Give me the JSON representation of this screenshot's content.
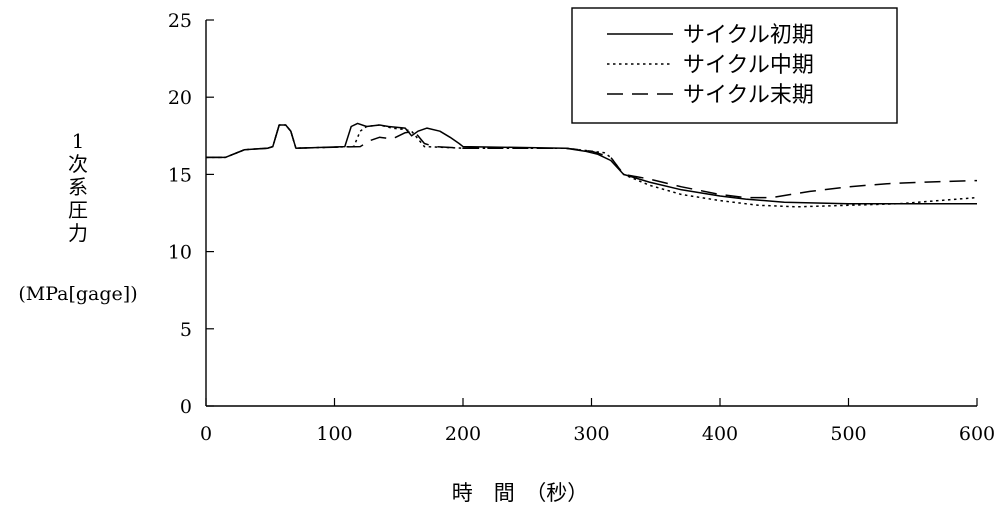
{
  "chart_data": {
    "type": "line",
    "xlabel": "時　間　（秒）",
    "ylabel_lines": [
      "1",
      "次",
      "系",
      "圧",
      "力"
    ],
    "ylabel_unit": "(MPa[gage])",
    "xlim": [
      0,
      600
    ],
    "ylim": [
      0,
      25
    ],
    "xticks": [
      0,
      100,
      200,
      300,
      400,
      500,
      600
    ],
    "yticks": [
      0,
      5,
      10,
      15,
      20,
      25
    ],
    "grid": false,
    "legend_position": "top-right",
    "series": [
      {
        "name": "サイクル初期",
        "style": "solid",
        "points": [
          [
            0,
            16.1
          ],
          [
            15,
            16.1
          ],
          [
            30,
            16.6
          ],
          [
            48,
            16.7
          ],
          [
            52,
            16.8
          ],
          [
            57,
            18.2
          ],
          [
            62,
            18.2
          ],
          [
            66,
            17.8
          ],
          [
            70,
            16.7
          ],
          [
            108,
            16.8
          ],
          [
            113,
            18.1
          ],
          [
            118,
            18.3
          ],
          [
            125,
            18.1
          ],
          [
            135,
            18.2
          ],
          [
            142,
            18.1
          ],
          [
            155,
            18.0
          ],
          [
            160,
            17.5
          ],
          [
            165,
            17.8
          ],
          [
            172,
            18.0
          ],
          [
            182,
            17.8
          ],
          [
            190,
            17.4
          ],
          [
            197,
            17.0
          ],
          [
            200,
            16.8
          ],
          [
            280,
            16.7
          ],
          [
            295,
            16.5
          ],
          [
            305,
            16.3
          ],
          [
            315,
            15.9
          ],
          [
            325,
            15.0
          ],
          [
            345,
            14.5
          ],
          [
            370,
            14.0
          ],
          [
            400,
            13.6
          ],
          [
            420,
            13.4
          ],
          [
            450,
            13.2
          ],
          [
            500,
            13.1
          ],
          [
            550,
            13.1
          ],
          [
            600,
            13.1
          ]
        ]
      },
      {
        "name": "サイクル中期",
        "style": "dotted",
        "points": [
          [
            0,
            16.1
          ],
          [
            15,
            16.1
          ],
          [
            30,
            16.6
          ],
          [
            48,
            16.7
          ],
          [
            52,
            16.8
          ],
          [
            57,
            18.2
          ],
          [
            62,
            18.2
          ],
          [
            66,
            17.8
          ],
          [
            70,
            16.7
          ],
          [
            115,
            16.8
          ],
          [
            120,
            17.8
          ],
          [
            125,
            18.1
          ],
          [
            135,
            18.2
          ],
          [
            145,
            18.0
          ],
          [
            155,
            17.9
          ],
          [
            160,
            17.8
          ],
          [
            170,
            16.8
          ],
          [
            200,
            16.7
          ],
          [
            280,
            16.7
          ],
          [
            300,
            16.5
          ],
          [
            310,
            16.4
          ],
          [
            315,
            16.1
          ],
          [
            325,
            15.0
          ],
          [
            345,
            14.3
          ],
          [
            370,
            13.7
          ],
          [
            400,
            13.3
          ],
          [
            430,
            13.0
          ],
          [
            460,
            12.9
          ],
          [
            500,
            13.0
          ],
          [
            540,
            13.1
          ],
          [
            570,
            13.3
          ],
          [
            600,
            13.5
          ]
        ]
      },
      {
        "name": "サイクル末期",
        "style": "dashed",
        "points": [
          [
            0,
            16.1
          ],
          [
            15,
            16.1
          ],
          [
            30,
            16.6
          ],
          [
            48,
            16.7
          ],
          [
            52,
            16.8
          ],
          [
            57,
            18.2
          ],
          [
            62,
            18.2
          ],
          [
            66,
            17.8
          ],
          [
            70,
            16.7
          ],
          [
            120,
            16.8
          ],
          [
            128,
            17.2
          ],
          [
            135,
            17.4
          ],
          [
            145,
            17.3
          ],
          [
            155,
            17.7
          ],
          [
            162,
            17.8
          ],
          [
            170,
            17.0
          ],
          [
            178,
            16.8
          ],
          [
            200,
            16.7
          ],
          [
            280,
            16.7
          ],
          [
            300,
            16.5
          ],
          [
            315,
            16.1
          ],
          [
            325,
            15.0
          ],
          [
            345,
            14.7
          ],
          [
            370,
            14.2
          ],
          [
            400,
            13.7
          ],
          [
            420,
            13.5
          ],
          [
            440,
            13.5
          ],
          [
            470,
            13.9
          ],
          [
            500,
            14.2
          ],
          [
            530,
            14.4
          ],
          [
            560,
            14.5
          ],
          [
            600,
            14.6
          ]
        ]
      }
    ]
  }
}
